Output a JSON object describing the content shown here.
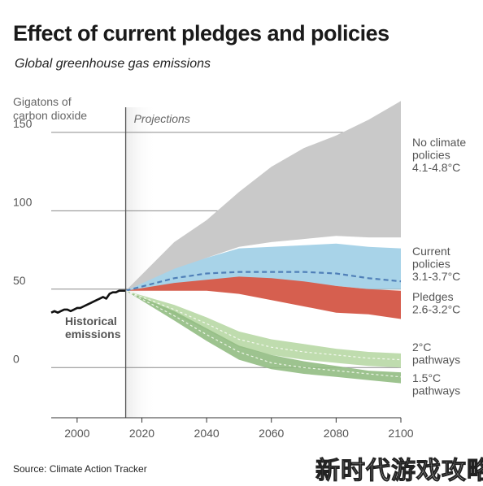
{
  "title": "Effect of current pledges and policies",
  "subtitle": "Global greenhouse gas emissions",
  "source": "Source: Climate Action Tracker",
  "watermark": "新时代游戏攻略",
  "chart_data": {
    "type": "area",
    "ylabel": "Gigatons of carbon dioxide",
    "xlim": [
      1992,
      2100
    ],
    "ylim": [
      -32,
      166
    ],
    "yticks": [
      0,
      50,
      100,
      150
    ],
    "xticks": [
      2000,
      2020,
      2040,
      2060,
      2080,
      2100
    ],
    "grid": "horizontal",
    "projections_start": 2015,
    "projections_label": "Projections",
    "colors": {
      "no_policy": "#c9c9c9",
      "current": "#a8d3e8",
      "current_median": "#4f7fb8",
      "pledges": "#d65f4f",
      "two_c": "#bfdcae",
      "one_five_c": "#92bd83",
      "historical": "#111111",
      "projection_shade": "#ececec"
    },
    "historical": {
      "label": "Historical emissions",
      "x": [
        1992,
        1993,
        1994,
        1995,
        1996,
        1997,
        1998,
        1999,
        2000,
        2001,
        2002,
        2003,
        2004,
        2005,
        2006,
        2007,
        2008,
        2009,
        2010,
        2011,
        2012,
        2013,
        2014,
        2015
      ],
      "y": [
        35,
        36,
        35,
        36,
        37,
        37,
        36,
        37,
        38,
        38,
        39,
        40,
        41,
        42,
        43,
        44,
        45,
        44,
        47,
        48,
        48,
        49,
        49,
        49
      ]
    },
    "series": [
      {
        "name": "No climate policies",
        "range": "4.1-4.8°C",
        "x": [
          2015,
          2030,
          2040,
          2050,
          2060,
          2070,
          2080,
          2090,
          2100
        ],
        "upper": [
          49,
          80,
          94,
          112,
          128,
          140,
          148,
          158,
          170
        ],
        "lower": [
          49,
          62,
          70,
          77,
          80,
          82,
          84,
          83,
          83
        ]
      },
      {
        "name": "Current policies",
        "range": "3.1-3.7°C",
        "x": [
          2015,
          2030,
          2040,
          2050,
          2060,
          2070,
          2080,
          2090,
          2100
        ],
        "upper": [
          49,
          63,
          70,
          76,
          77,
          78,
          79,
          77,
          76
        ],
        "lower": [
          49,
          52,
          55,
          56,
          55,
          54,
          52,
          50,
          50
        ],
        "median": [
          49,
          57,
          60,
          61,
          61,
          61,
          60,
          57,
          55
        ]
      },
      {
        "name": "Pledges",
        "range": "2.6-3.2°C",
        "x": [
          2015,
          2030,
          2040,
          2050,
          2060,
          2070,
          2080,
          2090,
          2100
        ],
        "upper": [
          49,
          54,
          56,
          58,
          57,
          55,
          52,
          50,
          49
        ],
        "lower": [
          49,
          49,
          49,
          47,
          43,
          39,
          35,
          34,
          31
        ]
      },
      {
        "name": "2°C pathways",
        "x": [
          2015,
          2030,
          2040,
          2050,
          2060,
          2070,
          2080,
          2090,
          2100
        ],
        "upper": [
          49,
          40,
          32,
          23,
          18,
          15,
          12,
          10,
          9
        ],
        "lower": [
          49,
          34,
          24,
          13,
          8,
          5,
          3,
          1,
          0
        ],
        "median": [
          49,
          37,
          28,
          18,
          13,
          10,
          8,
          6,
          5
        ]
      },
      {
        "name": "1.5°C pathways",
        "x": [
          2015,
          2030,
          2040,
          2050,
          2060,
          2070,
          2080,
          2090,
          2100
        ],
        "upper": [
          49,
          36,
          25,
          14,
          8,
          4,
          1,
          -2,
          -3
        ],
        "lower": [
          49,
          30,
          17,
          5,
          -1,
          -4,
          -6,
          -8,
          -10
        ],
        "median": [
          49,
          33,
          21,
          10,
          3,
          0,
          -2,
          -4,
          -6
        ]
      }
    ]
  }
}
